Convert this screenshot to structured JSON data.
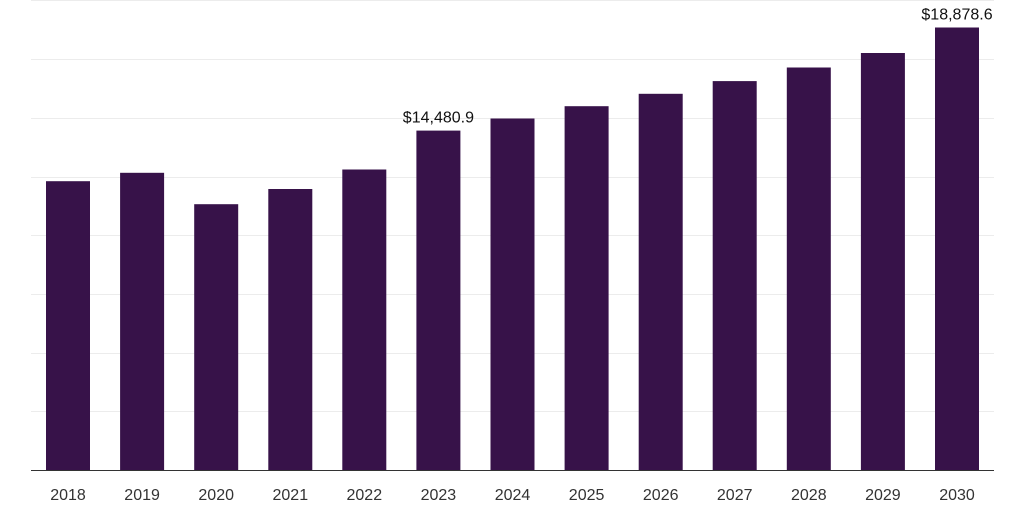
{
  "chart_data": {
    "type": "bar",
    "categories": [
      "2018",
      "2019",
      "2020",
      "2021",
      "2022",
      "2023",
      "2024",
      "2025",
      "2026",
      "2027",
      "2028",
      "2029",
      "2030"
    ],
    "values": [
      12320,
      12680,
      11340,
      11990,
      12820,
      14480.9,
      14995,
      15520,
      16050,
      16590,
      17170,
      17790,
      18878.6
    ],
    "data_labels": [
      "",
      "",
      "",
      "",
      "",
      "$14,480.9",
      "",
      "",
      "",
      "",
      "",
      "",
      "$18,878.6"
    ],
    "ylim": [
      0,
      18900
    ],
    "grid": true,
    "bar_color": "#371249",
    "title": "",
    "xlabel": "",
    "ylabel": ""
  }
}
